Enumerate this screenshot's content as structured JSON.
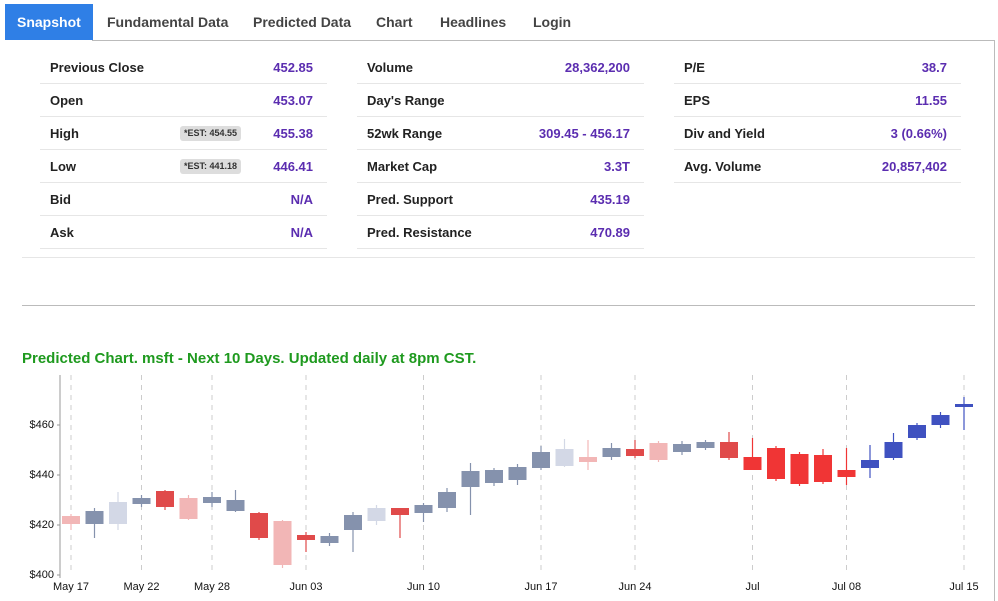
{
  "tabs": [
    "Snapshot",
    "Fundamental Data",
    "Predicted Data",
    "Chart",
    "Headlines",
    "Login"
  ],
  "table": {
    "columns": [
      [
        {
          "label": "Previous Close",
          "value": "452.85"
        },
        {
          "label": "Open",
          "value": "453.07"
        },
        {
          "label": "High",
          "value": "455.38",
          "est": "*EST: 454.55"
        },
        {
          "label": "Low",
          "value": "446.41",
          "est": "*EST: 441.18"
        },
        {
          "label": "Bid",
          "value": "N/A"
        },
        {
          "label": "Ask",
          "value": "N/A"
        }
      ],
      [
        {
          "label": "Volume",
          "value": "28,362,200"
        },
        {
          "label": "Day's Range"
        },
        {
          "label": "52wk Range",
          "value": "309.45 - 456.17"
        },
        {
          "label": "Market Cap",
          "value": "3.3T"
        },
        {
          "label": "Pred. Support",
          "value": "435.19"
        },
        {
          "label": "Pred. Resistance",
          "value": "470.89"
        }
      ],
      [
        {
          "label": "P/E",
          "value": "38.7"
        },
        {
          "label": "EPS",
          "value": "11.55"
        },
        {
          "label": "Div and Yield",
          "value": "3 (0.66%)"
        },
        {
          "label": "Avg. Volume",
          "value": "20,857,402"
        }
      ]
    ]
  },
  "chart_data": {
    "type": "candlestick",
    "title": "Predicted Chart. msft - Next 10 Days. Updated daily at 8pm CST.",
    "categories": [
      "May 17",
      null,
      null,
      "May 22",
      null,
      null,
      "May 28",
      null,
      null,
      null,
      "Jun 03",
      null,
      null,
      null,
      null,
      "Jun 10",
      null,
      null,
      null,
      null,
      "Jun 17",
      null,
      null,
      null,
      "Jun 24",
      null,
      null,
      null,
      null,
      "Jul",
      null,
      null,
      null,
      "Jul 08",
      null,
      null,
      null,
      null,
      "Jul 15"
    ],
    "ylim": [
      400,
      480
    ],
    "yticks": [
      {
        "value": 400,
        "label": "$400"
      },
      {
        "value": 420,
        "label": "$420"
      },
      {
        "value": 440,
        "label": "$440"
      },
      {
        "value": 460,
        "label": "$460"
      }
    ],
    "candles": [
      {
        "open": 423.6,
        "close": 420.4,
        "high": 424.4,
        "low": 418,
        "color": "#f2b6b6"
      },
      {
        "open": 420.4,
        "close": 425.6,
        "high": 426.8,
        "low": 414.8,
        "color": "#8592ad"
      },
      {
        "open": 420.4,
        "close": 429.2,
        "high": 433.2,
        "low": 418,
        "color": "#d3d8e6"
      },
      {
        "open": 428.4,
        "close": 430.8,
        "high": 432,
        "low": 427.2,
        "color": "#8592ad"
      },
      {
        "open": 433.6,
        "close": 427.2,
        "high": 434,
        "low": 426,
        "color": "#e04a4a"
      },
      {
        "open": 430.8,
        "close": 422.4,
        "high": 432,
        "low": 422,
        "color": "#f2b6b6"
      },
      {
        "open": 428.8,
        "close": 431.2,
        "high": 433.2,
        "low": 427.2,
        "color": "#8592ad"
      },
      {
        "open": 430,
        "close": 425.6,
        "high": 434,
        "low": 425.2,
        "color": "#8592ad"
      },
      {
        "open": 424.8,
        "close": 414.8,
        "high": 425.2,
        "low": 414,
        "color": "#e04a4a"
      },
      {
        "open": 421.6,
        "close": 404,
        "high": 422,
        "low": 402.8,
        "color": "#f2b6b6"
      },
      {
        "open": 416,
        "close": 414,
        "high": 417.2,
        "low": 409.2,
        "color": "#e04a4a"
      },
      {
        "open": 412.8,
        "close": 415.6,
        "high": 416.8,
        "low": 411.6,
        "color": "#8592ad"
      },
      {
        "open": 418,
        "close": 424,
        "high": 425.2,
        "low": 409.2,
        "color": "#8592ad"
      },
      {
        "open": 421.6,
        "close": 426.8,
        "high": 428,
        "low": 420,
        "color": "#d3d8e6"
      },
      {
        "open": 426.8,
        "close": 424,
        "high": 426.8,
        "low": 414.8,
        "color": "#e04a4a"
      },
      {
        "open": 424.8,
        "close": 428,
        "high": 428.8,
        "low": 421.2,
        "color": "#8592ad"
      },
      {
        "open": 426.8,
        "close": 433.2,
        "high": 434.8,
        "low": 425.2,
        "color": "#8592ad"
      },
      {
        "open": 435.2,
        "close": 441.6,
        "high": 444.8,
        "low": 424,
        "color": "#8592ad"
      },
      {
        "open": 436.8,
        "close": 442,
        "high": 442.8,
        "low": 435.6,
        "color": "#8592ad"
      },
      {
        "open": 438,
        "close": 443.2,
        "high": 444.4,
        "low": 436,
        "color": "#8592ad"
      },
      {
        "open": 442.8,
        "close": 449.2,
        "high": 451.6,
        "low": 442,
        "color": "#8592ad"
      },
      {
        "open": 443.6,
        "close": 450.4,
        "high": 454.4,
        "low": 443.2,
        "color": "#d3d8e6"
      },
      {
        "open": 447.2,
        "close": 445.2,
        "high": 454,
        "low": 442,
        "color": "#f2b6b6"
      },
      {
        "open": 447.2,
        "close": 450.8,
        "high": 452.8,
        "low": 446,
        "color": "#8592ad"
      },
      {
        "open": 450.4,
        "close": 447.6,
        "high": 454,
        "low": 446.8,
        "color": "#e04a4a"
      },
      {
        "open": 452.8,
        "close": 446,
        "high": 453.6,
        "low": 445.2,
        "color": "#f2b6b6"
      },
      {
        "open": 449.2,
        "close": 452.4,
        "high": 453.6,
        "low": 448,
        "color": "#8592ad"
      },
      {
        "open": 450.8,
        "close": 453.2,
        "high": 454,
        "low": 450,
        "color": "#8592ad"
      },
      {
        "open": 453.2,
        "close": 446.8,
        "high": 457.2,
        "low": 446,
        "color": "#e04a4a"
      },
      {
        "open": 447.2,
        "close": 442,
        "high": 454.8,
        "low": 442,
        "color": "#f03535"
      },
      {
        "open": 450.8,
        "close": 438.4,
        "high": 451.6,
        "low": 437.6,
        "color": "#f03535"
      },
      {
        "open": 448.4,
        "close": 436.4,
        "high": 449.2,
        "low": 435.6,
        "color": "#f03535"
      },
      {
        "open": 448,
        "close": 437.2,
        "high": 450.4,
        "low": 436.4,
        "color": "#f03535"
      },
      {
        "open": 442,
        "close": 439.2,
        "high": 450.8,
        "low": 436,
        "color": "#f03535"
      },
      {
        "open": 442.8,
        "close": 446,
        "high": 452,
        "low": 438.8,
        "color": "#3f51c0"
      },
      {
        "open": 446.8,
        "close": 453.2,
        "high": 456.8,
        "low": 446,
        "color": "#3f51c0"
      },
      {
        "open": 454.8,
        "close": 460,
        "high": 460.8,
        "low": 454,
        "color": "#3f51c0"
      },
      {
        "open": 460,
        "close": 464,
        "high": 465.2,
        "low": 458.8,
        "color": "#3f51c0"
      },
      {
        "open": 467.2,
        "close": 468.4,
        "high": 471.2,
        "low": 458,
        "color": "#3f51c0"
      }
    ]
  }
}
